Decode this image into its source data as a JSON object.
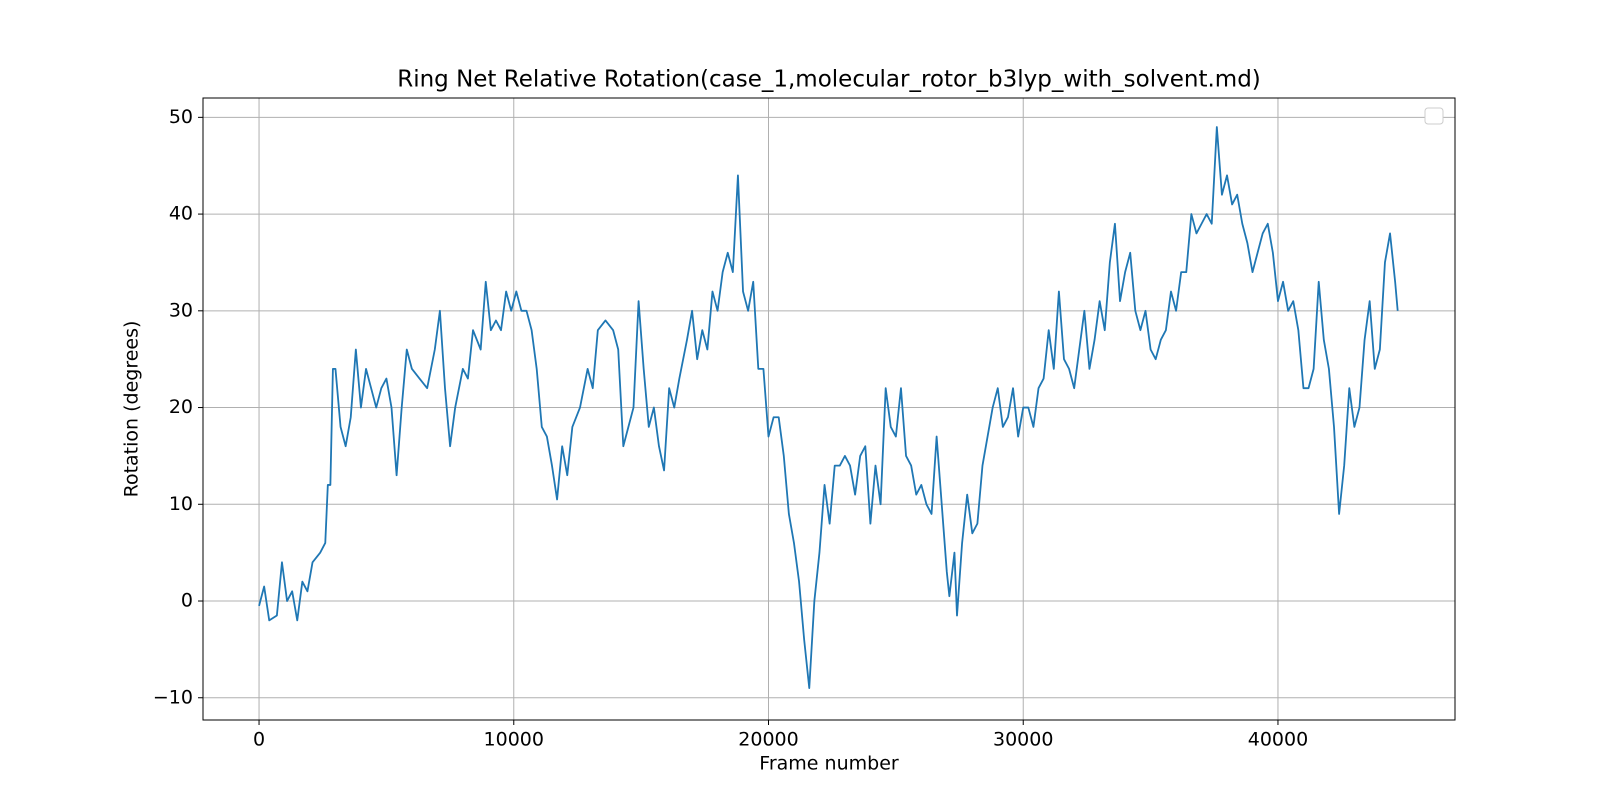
{
  "chart_data": {
    "type": "line",
    "title": "Ring Net Relative Rotation(case_1,molecular_rotor_b3lyp_with_solvent.md)",
    "x_label": "Frame number",
    "y_label": "Rotation (degrees)",
    "color": "#1f77b4",
    "grid": true,
    "legend": "upper right",
    "xlim": [
      -2200,
      46950
    ],
    "ylim": [
      -12.3,
      52.0
    ],
    "xticks": [
      0,
      10000,
      20000,
      30000,
      40000
    ],
    "yticks": [
      {
        "value": -10,
        "label": "−10"
      },
      0,
      10,
      20,
      30,
      40,
      50
    ],
    "x": [
      0,
      200,
      400,
      700,
      900,
      1100,
      1300,
      1500,
      1700,
      1900,
      2100,
      2400,
      2600,
      2700,
      2800,
      2900,
      3000,
      3200,
      3400,
      3600,
      3800,
      4000,
      4200,
      4400,
      4600,
      4800,
      5000,
      5200,
      5400,
      5600,
      5800,
      6000,
      6300,
      6600,
      6900,
      7100,
      7300,
      7500,
      7700,
      8000,
      8200,
      8400,
      8700,
      8900,
      9100,
      9300,
      9500,
      9700,
      9900,
      10100,
      10300,
      10500,
      10700,
      10900,
      11100,
      11300,
      11500,
      11700,
      11900,
      12100,
      12300,
      12600,
      12900,
      13100,
      13300,
      13600,
      13900,
      14100,
      14300,
      14500,
      14700,
      14900,
      15100,
      15300,
      15500,
      15700,
      15900,
      16100,
      16300,
      16500,
      16800,
      17000,
      17200,
      17400,
      17600,
      17800,
      18000,
      18200,
      18400,
      18600,
      18800,
      19000,
      19200,
      19400,
      19600,
      19800,
      20000,
      20200,
      20400,
      20600,
      20800,
      21000,
      21200,
      21400,
      21600,
      21800,
      22000,
      22200,
      22400,
      22600,
      22800,
      23000,
      23200,
      23400,
      23600,
      23800,
      24000,
      24200,
      24400,
      24600,
      24800,
      25000,
      25200,
      25400,
      25600,
      25800,
      26000,
      26200,
      26400,
      26600,
      26800,
      27000,
      27100,
      27300,
      27400,
      27600,
      27800,
      28000,
      28200,
      28400,
      28600,
      28800,
      29000,
      29200,
      29400,
      29600,
      29800,
      30000,
      30200,
      30400,
      30600,
      30800,
      31000,
      31200,
      31400,
      31600,
      31800,
      32000,
      32200,
      32400,
      32600,
      32800,
      33000,
      33200,
      33400,
      33600,
      33800,
      34000,
      34200,
      34400,
      34600,
      34800,
      35000,
      35200,
      35400,
      35600,
      35800,
      36000,
      36200,
      36400,
      36600,
      36800,
      37000,
      37200,
      37400,
      37600,
      37800,
      38000,
      38200,
      38400,
      38600,
      38800,
      39000,
      39200,
      39400,
      39600,
      39800,
      40000,
      40200,
      40400,
      40600,
      40800,
      41000,
      41200,
      41400,
      41600,
      41800,
      42000,
      42200,
      42400,
      42600,
      42800,
      43000,
      43200,
      43400,
      43600,
      43800,
      44000,
      44200,
      44400,
      44600,
      44700
    ],
    "values": [
      -0.5,
      1.5,
      -2,
      -1.5,
      4,
      0,
      1,
      -2,
      2,
      1,
      4,
      5,
      6,
      12,
      12,
      24,
      24,
      18,
      16,
      19,
      26,
      20,
      24,
      22,
      20,
      22,
      23,
      20,
      13,
      20,
      26,
      24,
      23,
      22,
      26,
      30,
      22,
      16,
      20,
      24,
      23,
      28,
      26,
      33,
      28,
      29,
      28,
      32,
      30,
      32,
      30,
      30,
      28,
      24,
      18,
      17,
      14,
      10.5,
      16,
      13,
      18,
      20,
      24,
      22,
      28,
      29,
      28,
      26,
      16,
      18,
      20,
      31,
      24,
      18,
      20,
      16,
      13.5,
      22,
      20,
      23,
      27,
      30,
      25,
      28,
      26,
      32,
      30,
      34,
      36,
      34,
      44,
      32,
      30,
      33,
      24,
      24,
      17,
      19,
      19,
      15,
      9,
      6,
      2,
      -4,
      -9,
      0,
      5,
      12,
      8,
      14,
      14,
      15,
      14,
      11,
      15,
      16,
      8,
      14,
      10,
      22,
      18,
      17,
      22,
      15,
      14,
      11,
      12,
      10,
      9,
      17,
      10,
      3,
      0.5,
      5,
      -1.5,
      6,
      11,
      7,
      8,
      14,
      17,
      20,
      22,
      18,
      19,
      22,
      17,
      20,
      20,
      18,
      22,
      23,
      28,
      24,
      32,
      25,
      24,
      22,
      26,
      30,
      24,
      27,
      31,
      28,
      35,
      39,
      31,
      34,
      36,
      30,
      28,
      30,
      26,
      25,
      27,
      28,
      32,
      30,
      34,
      34,
      40,
      38,
      39,
      40,
      39,
      49,
      42,
      44,
      41,
      42,
      39,
      37,
      34,
      36,
      38,
      39,
      36,
      31,
      33,
      30,
      31,
      28,
      22,
      22,
      24,
      33,
      27,
      24,
      18,
      9,
      14,
      22,
      18,
      20,
      27,
      31,
      24,
      26,
      35,
      38,
      33,
      30
    ]
  }
}
